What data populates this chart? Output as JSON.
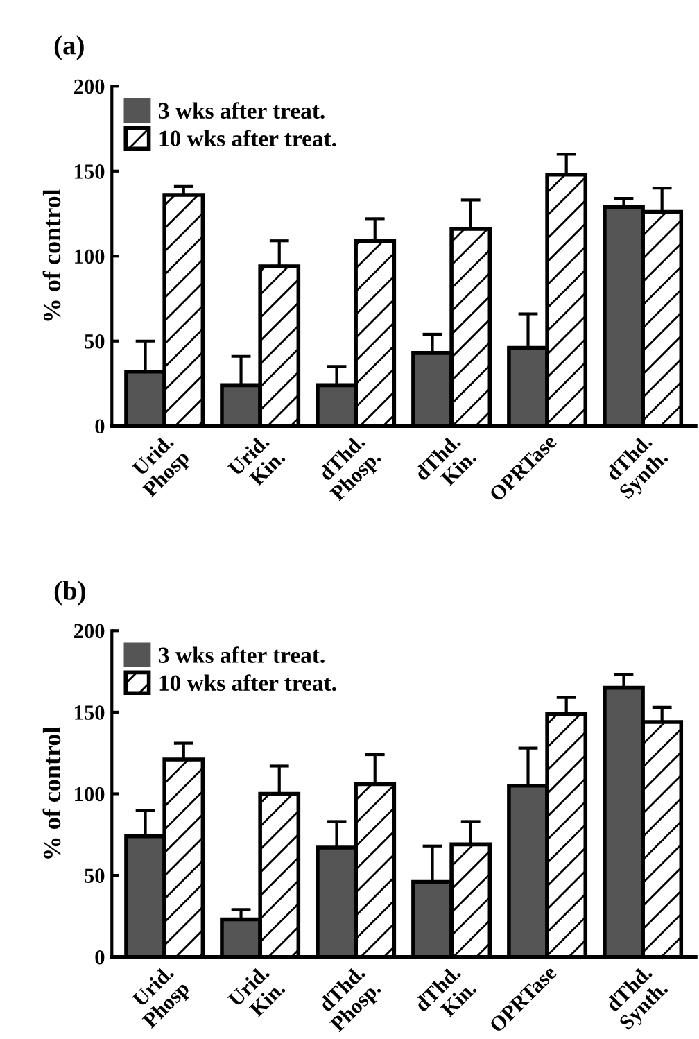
{
  "chart_data": [
    {
      "type": "bar",
      "title": "(a)",
      "ylabel": "% of control",
      "categories": [
        "Urid.\nPhosp",
        "Urid.\nKin.",
        "dThd.\nPhosp.",
        "dThd.\nKin.",
        "OPRTase",
        "dThd.\nSynth."
      ],
      "ylim": [
        0,
        200
      ],
      "yticks": [
        0,
        50,
        100,
        150,
        200
      ],
      "legend": "top left",
      "series": [
        {
          "name": "3 wks after treat.",
          "color": "#555555",
          "values": [
            32,
            24,
            24,
            43,
            46,
            129
          ],
          "errors": [
            [
              32,
              50
            ],
            [
              24,
              41
            ],
            [
              24,
              35
            ],
            [
              43,
              54
            ],
            [
              46,
              66
            ],
            [
              129,
              134
            ]
          ]
        },
        {
          "name": "10 wks after treat.",
          "color": "#000000",
          "values": [
            136,
            94,
            109,
            116,
            148,
            126
          ],
          "errors": [
            [
              136,
              141
            ],
            [
              94,
              109
            ],
            [
              109,
              122
            ],
            [
              116,
              133
            ],
            [
              148,
              160
            ],
            [
              126,
              140
            ]
          ]
        }
      ]
    },
    {
      "type": "bar",
      "title": "(b)",
      "ylabel": "% of control",
      "categories": [
        "Urid.\nPhosp",
        "Urid.\nKin.",
        "dThd.\nPhosp.",
        "dThd.\nKin.",
        "OPRTase",
        "dThd.\nSynth."
      ],
      "ylim": [
        0,
        200
      ],
      "yticks": [
        0,
        50,
        100,
        150,
        200
      ],
      "legend": "top left",
      "series": [
        {
          "name": "3 wks after treat.",
          "color": "#555555",
          "values": [
            74,
            23,
            67,
            46,
            105,
            165
          ],
          "errors": [
            [
              74,
              90
            ],
            [
              23,
              29
            ],
            [
              67,
              83
            ],
            [
              46,
              68
            ],
            [
              105,
              128
            ],
            [
              165,
              173
            ]
          ]
        },
        {
          "name": "10 wks after treat.",
          "color": "#000000",
          "values": [
            121,
            100,
            106,
            69,
            149,
            144
          ],
          "errors": [
            [
              121,
              131
            ],
            [
              100,
              117
            ],
            [
              106,
              124
            ],
            [
              69,
              83
            ],
            [
              149,
              159
            ],
            [
              144,
              153
            ]
          ]
        }
      ]
    }
  ]
}
